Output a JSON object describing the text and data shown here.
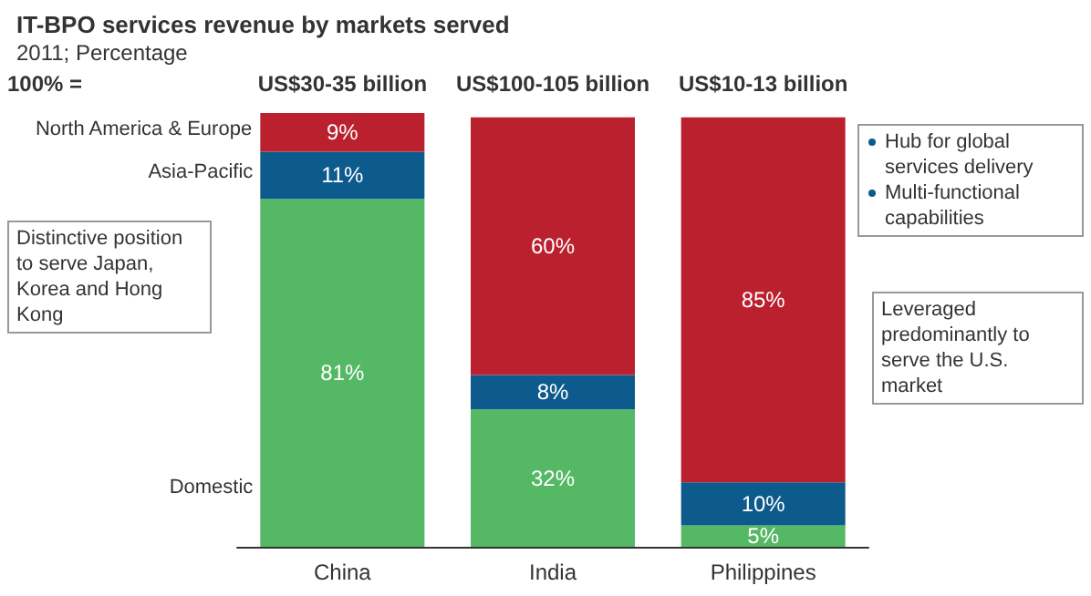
{
  "chart_data": {
    "type": "bar",
    "stacked": true,
    "title": "IT-BPO services revenue by markets served",
    "subtitle": "2011; Percentage",
    "categories": [
      "China",
      "India",
      "Philippines"
    ],
    "series": [
      {
        "name": "Domestic",
        "color": "#55b865",
        "values": [
          81,
          32,
          5
        ],
        "value_labels": [
          "81%",
          "32%",
          "5%"
        ]
      },
      {
        "name": "Asia-Pacific",
        "color": "#0d5a8c",
        "values": [
          11,
          8,
          10
        ],
        "value_labels": [
          "11%",
          "8%",
          "10%"
        ]
      },
      {
        "name": "North America & Europe",
        "color": "#bb202f",
        "values": [
          9,
          60,
          85
        ],
        "value_labels": [
          "9%",
          "60%",
          "85%"
        ]
      }
    ],
    "totals": [
      "US$30-35 billion",
      "US$100-105 billion",
      "US$10-13 billion"
    ],
    "annotations": [
      "100% =",
      "Distinctive position to serve Japan, Korea and Hong Kong",
      "Hub for global services delivery",
      "Multi-functional capabilities",
      "Leveraged predominantly to serve the U.S. market"
    ],
    "legend": false
  }
}
